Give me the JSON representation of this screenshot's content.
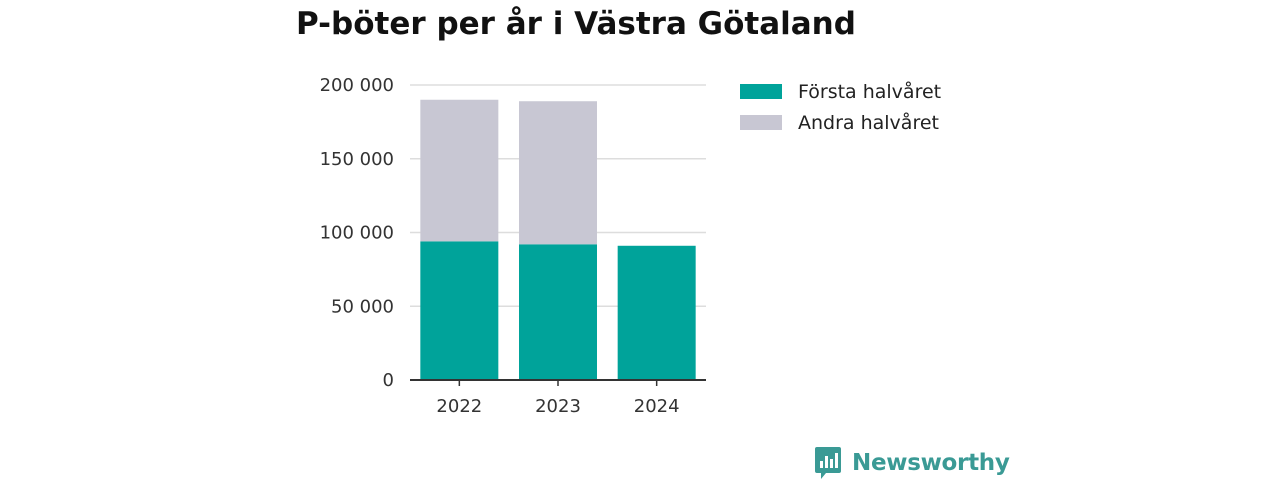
{
  "colors": {
    "first_half": "#00a39a",
    "second_half": "#c8c7d3",
    "grid": "#dddddd",
    "axis": "#333333",
    "brand": "#3a9a95"
  },
  "chart_data": {
    "type": "bar",
    "stacked": true,
    "title": "P-böter per år i Västra Götaland",
    "xlabel": "",
    "ylabel": "",
    "categories": [
      "2022",
      "2023",
      "2024"
    ],
    "series": [
      {
        "name": "Första halvåret",
        "values": [
          94000,
          92000,
          91000
        ],
        "color": "#00a39a"
      },
      {
        "name": "Andra halvåret",
        "values": [
          96000,
          97000,
          0
        ],
        "color": "#c8c7d3"
      }
    ],
    "ylim": [
      0,
      200000
    ],
    "yticks": [
      0,
      50000,
      100000,
      150000,
      200000
    ],
    "ytick_labels": [
      "0",
      "50 000",
      "100 000",
      "150 000",
      "200 000"
    ],
    "grid": true,
    "legend_position": "right"
  },
  "legend": {
    "items": [
      {
        "label": "Första halvåret",
        "color": "#00a39a"
      },
      {
        "label": "Andra halvåret",
        "color": "#c8c7d3"
      }
    ]
  },
  "logo": {
    "text": "Newsworthy",
    "icon": "newsworthy-logo-icon"
  }
}
